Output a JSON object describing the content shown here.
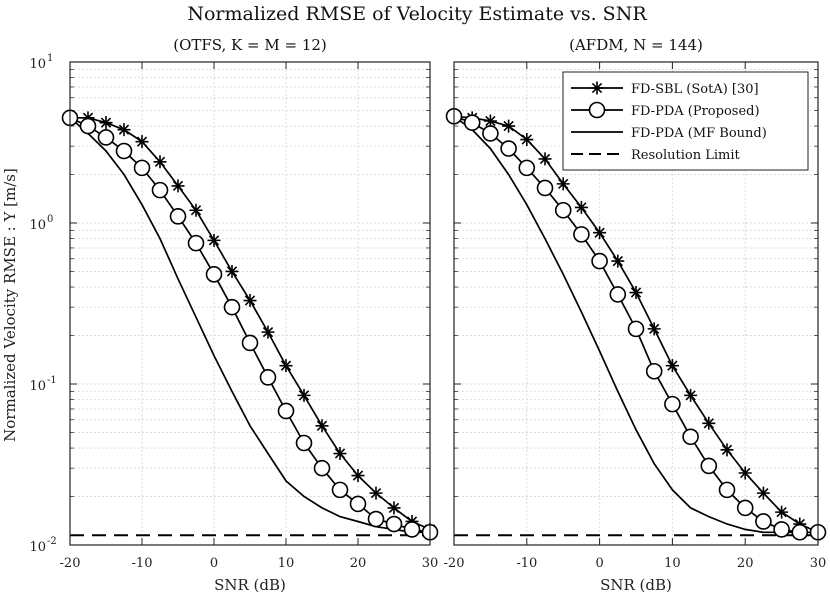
{
  "figure": {
    "title": "Normalized RMSE of Velocity Estimate vs. SNR",
    "shared_ylabel": "Normalized Velocity RMSE : Υ [m/s]"
  },
  "chart_data": [
    {
      "type": "line",
      "subtitle": "(OTFS, K = M = 12)",
      "xlabel": "SNR (dB)",
      "yscale": "log",
      "xlim": [
        -20,
        30
      ],
      "ylim": [
        0.01,
        10
      ],
      "xticks": [
        -20,
        -10,
        0,
        10,
        20,
        30
      ],
      "xtick_labels": [
        "-20",
        "-10",
        "0",
        "10",
        "20",
        "30"
      ],
      "yticks": [
        0.01,
        0.1,
        1,
        10
      ],
      "ytick_labels": [
        [
          "10",
          "-2"
        ],
        [
          "10",
          "-1"
        ],
        [
          "10",
          "0"
        ],
        [
          "10",
          "1"
        ]
      ],
      "grid": true,
      "series": [
        {
          "name": "FD-SBL (SotA) [30]",
          "marker": "asterisk",
          "line": "solid",
          "x": [
            -20,
            -17.5,
            -15,
            -12.5,
            -10,
            -7.5,
            -5,
            -2.5,
            0,
            2.5,
            5,
            7.5,
            10,
            12.5,
            15,
            17.5,
            20,
            22.5,
            25,
            27.5,
            30
          ],
          "y": [
            4.5,
            4.5,
            4.2,
            3.8,
            3.2,
            2.4,
            1.7,
            1.2,
            0.78,
            0.5,
            0.33,
            0.21,
            0.13,
            0.085,
            0.055,
            0.037,
            0.027,
            0.021,
            0.017,
            0.014,
            0.0125
          ]
        },
        {
          "name": "FD-PDA (Proposed)",
          "marker": "circle",
          "line": "solid",
          "x": [
            -20,
            -17.5,
            -15,
            -12.5,
            -10,
            -7.5,
            -5,
            -2.5,
            0,
            2.5,
            5,
            7.5,
            10,
            12.5,
            15,
            17.5,
            20,
            22.5,
            25,
            27.5,
            30
          ],
          "y": [
            4.5,
            4.0,
            3.4,
            2.8,
            2.2,
            1.6,
            1.1,
            0.75,
            0.48,
            0.3,
            0.18,
            0.11,
            0.068,
            0.043,
            0.03,
            0.022,
            0.018,
            0.0145,
            0.0135,
            0.0125,
            0.012
          ]
        },
        {
          "name": "FD-PDA (MF Bound)",
          "marker": "none",
          "line": "solid",
          "x": [
            -20,
            -17.5,
            -15,
            -12.5,
            -10,
            -7.5,
            -5,
            -2.5,
            0,
            2.5,
            5,
            7.5,
            10,
            12.5,
            15,
            17.5,
            20,
            22.5,
            25,
            27.5,
            30
          ],
          "y": [
            4.5,
            3.6,
            2.8,
            2.0,
            1.3,
            0.8,
            0.45,
            0.26,
            0.15,
            0.09,
            0.055,
            0.037,
            0.025,
            0.02,
            0.017,
            0.015,
            0.014,
            0.013,
            0.0125,
            0.012,
            0.012
          ]
        },
        {
          "name": "Resolution Limit",
          "marker": "none",
          "line": "dashed",
          "x": [
            -20,
            30
          ],
          "y": [
            0.0115,
            0.0115
          ]
        }
      ]
    },
    {
      "type": "line",
      "subtitle": "(AFDM, N = 144)",
      "xlabel": "SNR (dB)",
      "yscale": "log",
      "xlim": [
        -20,
        30
      ],
      "ylim": [
        0.01,
        10
      ],
      "xticks": [
        -20,
        -10,
        0,
        10,
        20,
        30
      ],
      "xtick_labels": [
        "-20",
        "-10",
        "0",
        "10",
        "20",
        "30"
      ],
      "yticks": [
        0.01,
        0.1,
        1,
        10
      ],
      "grid": true,
      "legend": "top-right",
      "series": [
        {
          "name": "FD-SBL (SotA) [30]",
          "marker": "asterisk",
          "line": "solid",
          "x": [
            -20,
            -17.5,
            -15,
            -12.5,
            -10,
            -7.5,
            -5,
            -2.5,
            0,
            2.5,
            5,
            7.5,
            10,
            12.5,
            15,
            17.5,
            20,
            22.5,
            25,
            27.5,
            30
          ],
          "y": [
            4.6,
            4.5,
            4.3,
            4.0,
            3.3,
            2.5,
            1.75,
            1.25,
            0.87,
            0.58,
            0.37,
            0.22,
            0.13,
            0.085,
            0.057,
            0.039,
            0.028,
            0.021,
            0.016,
            0.0135,
            0.012
          ]
        },
        {
          "name": "FD-PDA (Proposed)",
          "marker": "circle",
          "line": "solid",
          "x": [
            -20,
            -17.5,
            -15,
            -12.5,
            -10,
            -7.5,
            -5,
            -2.5,
            0,
            2.5,
            5,
            7.5,
            10,
            12.5,
            15,
            17.5,
            20,
            22.5,
            25,
            27.5,
            30
          ],
          "y": [
            4.6,
            4.2,
            3.6,
            2.9,
            2.2,
            1.65,
            1.2,
            0.85,
            0.58,
            0.36,
            0.22,
            0.12,
            0.075,
            0.047,
            0.031,
            0.022,
            0.017,
            0.014,
            0.0125,
            0.012,
            0.012
          ]
        },
        {
          "name": "FD-PDA (MF Bound)",
          "marker": "none",
          "line": "solid",
          "x": [
            -20,
            -17.5,
            -15,
            -12.5,
            -10,
            -7.5,
            -5,
            -2.5,
            0,
            2.5,
            5,
            7.5,
            10,
            12.5,
            15,
            17.5,
            20,
            22.5,
            25,
            27.5,
            30
          ],
          "y": [
            4.6,
            3.8,
            2.9,
            2.0,
            1.3,
            0.8,
            0.48,
            0.28,
            0.16,
            0.09,
            0.052,
            0.032,
            0.022,
            0.017,
            0.015,
            0.0135,
            0.0125,
            0.012,
            0.012,
            0.012,
            0.012
          ]
        },
        {
          "name": "Resolution Limit",
          "marker": "none",
          "line": "dashed",
          "x": [
            -20,
            30
          ],
          "y": [
            0.0115,
            0.0115
          ]
        }
      ]
    }
  ]
}
